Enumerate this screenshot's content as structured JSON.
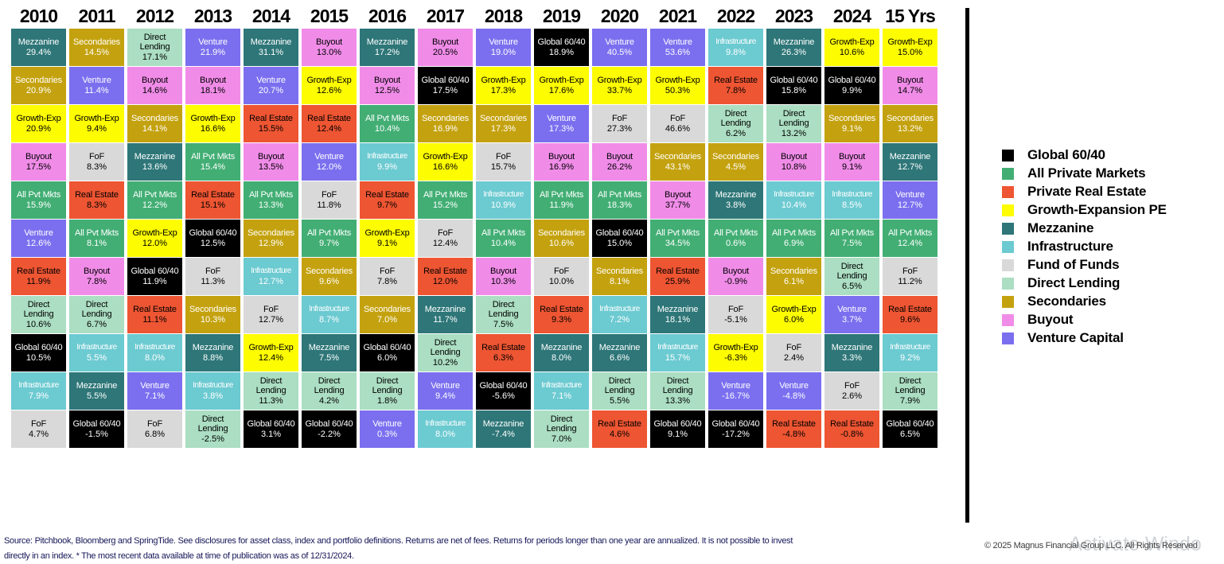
{
  "chart_data": {
    "type": "table",
    "description": "Ranked annual returns quilt by private-market asset class, 2010-2024 plus 15-year annualized",
    "columns": [
      "2010",
      "2011",
      "2012",
      "2013",
      "2014",
      "2015",
      "2016",
      "2017",
      "2018",
      "2019",
      "2020",
      "2021",
      "2022",
      "2023",
      "2024",
      "15 Yrs"
    ],
    "assets": {
      "Global 60/40": {
        "color": "#000000",
        "text_color": "#ffffff"
      },
      "All Pvt Mkts": {
        "color": "#42ae74",
        "text_color": "#ffffff"
      },
      "Real Estate": {
        "color": "#ee5532",
        "text_color": "#000000"
      },
      "Growth-Exp": {
        "color": "#fdfc00",
        "text_color": "#000000"
      },
      "Mezzanine": {
        "color": "#2e7678",
        "text_color": "#ffffff"
      },
      "Infrastructure": {
        "color": "#6ccad1",
        "text_color": "#ffffff"
      },
      "FoF": {
        "color": "#d9d9d9",
        "text_color": "#000000"
      },
      "Direct Lending": {
        "color": "#abdec2",
        "text_color": "#000000"
      },
      "Secondaries": {
        "color": "#c4a20f",
        "text_color": "#ffffff"
      },
      "Buyout": {
        "color": "#f08ce8",
        "text_color": "#000000"
      },
      "Venture": {
        "color": "#7b6fef",
        "text_color": "#ffffff"
      }
    },
    "series": [
      {
        "period": "2010",
        "entries": [
          [
            "Mezzanine",
            "29.4%"
          ],
          [
            "Secondaries",
            "20.9%"
          ],
          [
            "Growth-Exp",
            "20.9%"
          ],
          [
            "Buyout",
            "17.5%"
          ],
          [
            "All Pvt Mkts",
            "15.9%"
          ],
          [
            "Venture",
            "12.6%"
          ],
          [
            "Real Estate",
            "11.9%"
          ],
          [
            "Direct Lending",
            "10.6%"
          ],
          [
            "Global 60/40",
            "10.5%"
          ],
          [
            "Infrastructure",
            "7.9%"
          ],
          [
            "FoF",
            "4.7%"
          ]
        ]
      },
      {
        "period": "2011",
        "entries": [
          [
            "Secondaries",
            "14.5%"
          ],
          [
            "Venture",
            "11.4%"
          ],
          [
            "Growth-Exp",
            "9.4%"
          ],
          [
            "FoF",
            "8.3%"
          ],
          [
            "Real Estate",
            "8.3%"
          ],
          [
            "All Pvt Mkts",
            "8.1%"
          ],
          [
            "Buyout",
            "7.8%"
          ],
          [
            "Direct Lending",
            "6.7%"
          ],
          [
            "Infrastructure",
            "5.5%"
          ],
          [
            "Mezzanine",
            "5.5%"
          ],
          [
            "Global 60/40",
            "-1.5%"
          ]
        ]
      },
      {
        "period": "2012",
        "entries": [
          [
            "Direct Lending",
            "17.1%"
          ],
          [
            "Buyout",
            "14.6%"
          ],
          [
            "Secondaries",
            "14.1%"
          ],
          [
            "Mezzanine",
            "13.6%"
          ],
          [
            "All Pvt Mkts",
            "12.2%"
          ],
          [
            "Growth-Exp",
            "12.0%"
          ],
          [
            "Global 60/40",
            "11.9%"
          ],
          [
            "Real Estate",
            "11.1%"
          ],
          [
            "Infrastructure",
            "8.0%"
          ],
          [
            "Venture",
            "7.1%"
          ],
          [
            "FoF",
            "6.8%"
          ]
        ]
      },
      {
        "period": "2013",
        "entries": [
          [
            "Venture",
            "21.9%"
          ],
          [
            "Buyout",
            "18.1%"
          ],
          [
            "Growth-Exp",
            "16.6%"
          ],
          [
            "All Pvt Mkts",
            "15.4%"
          ],
          [
            "Real Estate",
            "15.1%"
          ],
          [
            "Global 60/40",
            "12.5%"
          ],
          [
            "FoF",
            "11.3%"
          ],
          [
            "Secondaries",
            "10.3%"
          ],
          [
            "Mezzanine",
            "8.8%"
          ],
          [
            "Infrastructure",
            "3.8%"
          ],
          [
            "Direct Lending",
            "-2.5%"
          ]
        ]
      },
      {
        "period": "2014",
        "entries": [
          [
            "Mezzanine",
            "31.1%"
          ],
          [
            "Venture",
            "20.7%"
          ],
          [
            "Real Estate",
            "15.5%"
          ],
          [
            "Buyout",
            "13.5%"
          ],
          [
            "All Pvt Mkts",
            "13.3%"
          ],
          [
            "Secondaries",
            "12.9%"
          ],
          [
            "Infrastructure",
            "12.7%"
          ],
          [
            "FoF",
            "12.7%"
          ],
          [
            "Growth-Exp",
            "12.4%"
          ],
          [
            "Direct Lending",
            "11.3%"
          ],
          [
            "Global 60/40",
            "3.1%"
          ]
        ]
      },
      {
        "period": "2015",
        "entries": [
          [
            "Buyout",
            "13.0%"
          ],
          [
            "Growth-Exp",
            "12.6%"
          ],
          [
            "Real Estate",
            "12.4%"
          ],
          [
            "Venture",
            "12.0%"
          ],
          [
            "FoF",
            "11.8%"
          ],
          [
            "All Pvt Mkts",
            "9.7%"
          ],
          [
            "Secondaries",
            "9.6%"
          ],
          [
            "Infrastructure",
            "8.7%"
          ],
          [
            "Mezzanine",
            "7.5%"
          ],
          [
            "Direct Lending",
            "4.2%"
          ],
          [
            "Global 60/40",
            "-2.2%"
          ]
        ]
      },
      {
        "period": "2016",
        "entries": [
          [
            "Mezzanine",
            "17.2%"
          ],
          [
            "Buyout",
            "12.5%"
          ],
          [
            "All Pvt Mkts",
            "10.4%"
          ],
          [
            "Infrastructure",
            "9.9%"
          ],
          [
            "Real Estate",
            "9.7%"
          ],
          [
            "Growth-Exp",
            "9.1%"
          ],
          [
            "FoF",
            "7.8%"
          ],
          [
            "Secondaries",
            "7.0%"
          ],
          [
            "Global 60/40",
            "6.0%"
          ],
          [
            "Direct Lending",
            "1.8%"
          ],
          [
            "Venture",
            "0.3%"
          ]
        ]
      },
      {
        "period": "2017",
        "entries": [
          [
            "Buyout",
            "20.5%"
          ],
          [
            "Global 60/40",
            "17.5%"
          ],
          [
            "Secondaries",
            "16.9%"
          ],
          [
            "Growth-Exp",
            "16.6%"
          ],
          [
            "All Pvt Mkts",
            "15.2%"
          ],
          [
            "FoF",
            "12.4%"
          ],
          [
            "Real Estate",
            "12.0%"
          ],
          [
            "Mezzanine",
            "11.7%"
          ],
          [
            "Direct Lending",
            "10.2%"
          ],
          [
            "Venture",
            "9.4%"
          ],
          [
            "Infrastructure",
            "8.0%"
          ]
        ]
      },
      {
        "period": "2018",
        "entries": [
          [
            "Venture",
            "19.0%"
          ],
          [
            "Growth-Exp",
            "17.3%"
          ],
          [
            "Secondaries",
            "17.3%"
          ],
          [
            "FoF",
            "15.7%"
          ],
          [
            "Infrastructure",
            "10.9%"
          ],
          [
            "All Pvt Mkts",
            "10.4%"
          ],
          [
            "Buyout",
            "10.3%"
          ],
          [
            "Direct Lending",
            "7.5%"
          ],
          [
            "Real Estate",
            "6.3%"
          ],
          [
            "Global 60/40",
            "-5.6%"
          ],
          [
            "Mezzanine",
            "-7.4%"
          ]
        ]
      },
      {
        "period": "2019",
        "entries": [
          [
            "Global 60/40",
            "18.9%"
          ],
          [
            "Growth-Exp",
            "17.6%"
          ],
          [
            "Venture",
            "17.3%"
          ],
          [
            "Buyout",
            "16.9%"
          ],
          [
            "All Pvt Mkts",
            "11.9%"
          ],
          [
            "Secondaries",
            "10.6%"
          ],
          [
            "FoF",
            "10.0%"
          ],
          [
            "Real Estate",
            "9.3%"
          ],
          [
            "Mezzanine",
            "8.0%"
          ],
          [
            "Infrastructure",
            "7.1%"
          ],
          [
            "Direct Lending",
            "7.0%"
          ]
        ]
      },
      {
        "period": "2020",
        "entries": [
          [
            "Venture",
            "40.5%"
          ],
          [
            "Growth-Exp",
            "33.7%"
          ],
          [
            "FoF",
            "27.3%"
          ],
          [
            "Buyout",
            "26.2%"
          ],
          [
            "All Pvt Mkts",
            "18.3%"
          ],
          [
            "Global 60/40",
            "15.0%"
          ],
          [
            "Secondaries",
            "8.1%"
          ],
          [
            "Infrastructure",
            "7.2%"
          ],
          [
            "Mezzanine",
            "6.6%"
          ],
          [
            "Direct Lending",
            "5.5%"
          ],
          [
            "Real Estate",
            "4.6%"
          ]
        ]
      },
      {
        "period": "2021",
        "entries": [
          [
            "Venture",
            "53.6%"
          ],
          [
            "Growth-Exp",
            "50.3%"
          ],
          [
            "FoF",
            "46.6%"
          ],
          [
            "Secondaries",
            "43.1%"
          ],
          [
            "Buyout",
            "37.7%"
          ],
          [
            "All Pvt Mkts",
            "34.5%"
          ],
          [
            "Real Estate",
            "25.9%"
          ],
          [
            "Mezzanine",
            "18.1%"
          ],
          [
            "Infrastructure",
            "15.7%"
          ],
          [
            "Direct Lending",
            "13.3%"
          ],
          [
            "Global 60/40",
            "9.1%"
          ]
        ]
      },
      {
        "period": "2022",
        "entries": [
          [
            "Infrastructure",
            "9.8%"
          ],
          [
            "Real Estate",
            "7.8%"
          ],
          [
            "Direct Lending",
            "6.2%"
          ],
          [
            "Secondaries",
            "4.5%"
          ],
          [
            "Mezzanine",
            "3.8%"
          ],
          [
            "All Pvt Mkts",
            "0.6%"
          ],
          [
            "Buyout",
            "-0.9%"
          ],
          [
            "FoF",
            "-5.1%"
          ],
          [
            "Growth-Exp",
            "-6.3%"
          ],
          [
            "Venture",
            "-16.7%"
          ],
          [
            "Global 60/40",
            "-17.2%"
          ]
        ]
      },
      {
        "period": "2023",
        "entries": [
          [
            "Mezzanine",
            "26.3%"
          ],
          [
            "Global 60/40",
            "15.8%"
          ],
          [
            "Direct Lending",
            "13.2%"
          ],
          [
            "Buyout",
            "10.8%"
          ],
          [
            "Infrastructure",
            "10.4%"
          ],
          [
            "All Pvt Mkts",
            "6.9%"
          ],
          [
            "Secondaries",
            "6.1%"
          ],
          [
            "Growth-Exp",
            "6.0%"
          ],
          [
            "FoF",
            "2.4%"
          ],
          [
            "Venture",
            "-4.8%"
          ],
          [
            "Real Estate",
            "-4.8%"
          ]
        ]
      },
      {
        "period": "2024",
        "entries": [
          [
            "Growth-Exp",
            "10.6%"
          ],
          [
            "Global 60/40",
            "9.9%"
          ],
          [
            "Secondaries",
            "9.1%"
          ],
          [
            "Buyout",
            "9.1%"
          ],
          [
            "Infrastructure",
            "8.5%"
          ],
          [
            "All Pvt Mkts",
            "7.5%"
          ],
          [
            "Direct Lending",
            "6.5%"
          ],
          [
            "Venture",
            "3.7%"
          ],
          [
            "Mezzanine",
            "3.3%"
          ],
          [
            "FoF",
            "2.6%"
          ],
          [
            "Real Estate",
            "-0.8%"
          ]
        ]
      },
      {
        "period": "15 Yrs",
        "entries": [
          [
            "Growth-Exp",
            "15.0%"
          ],
          [
            "Buyout",
            "14.7%"
          ],
          [
            "Secondaries",
            "13.2%"
          ],
          [
            "Mezzanine",
            "12.7%"
          ],
          [
            "Venture",
            "12.7%"
          ],
          [
            "All Pvt Mkts",
            "12.4%"
          ],
          [
            "FoF",
            "11.2%"
          ],
          [
            "Real Estate",
            "9.6%"
          ],
          [
            "Infrastructure",
            "9.2%"
          ],
          [
            "Direct Lending",
            "7.9%"
          ],
          [
            "Global 60/40",
            "6.5%"
          ]
        ]
      }
    ],
    "legend": [
      {
        "label": "Global 60/40",
        "asset": "Global 60/40"
      },
      {
        "label": "All Private Markets",
        "asset": "All Pvt Mkts"
      },
      {
        "label": "Private Real Estate",
        "asset": "Real Estate"
      },
      {
        "label": "Growth-Expansion PE",
        "asset": "Growth-Exp"
      },
      {
        "label": "Mezzanine",
        "asset": "Mezzanine"
      },
      {
        "label": "Infrastructure",
        "asset": "Infrastructure"
      },
      {
        "label": "Fund of Funds",
        "asset": "FoF"
      },
      {
        "label": "Direct Lending",
        "asset": "Direct Lending"
      },
      {
        "label": "Secondaries",
        "asset": "Secondaries"
      },
      {
        "label": "Buyout",
        "asset": "Buyout"
      },
      {
        "label": "Venture Capital",
        "asset": "Venture"
      }
    ],
    "legend_position": "right"
  },
  "footer": {
    "line1": "Source: Pitchbook, Bloomberg and SpringTide. See disclosures for asset class, index and portfolio definitions. Returns are net of fees. Returns for periods longer than one year are annualized. It is not possible to invest",
    "line2": "directly in an index. * The most recent data available at time of publication was as of 12/31/2024.",
    "copyright": "© 2025 Magnus Financial Group LLC. All Rights Reserved",
    "watermark": "Activate Windo"
  }
}
